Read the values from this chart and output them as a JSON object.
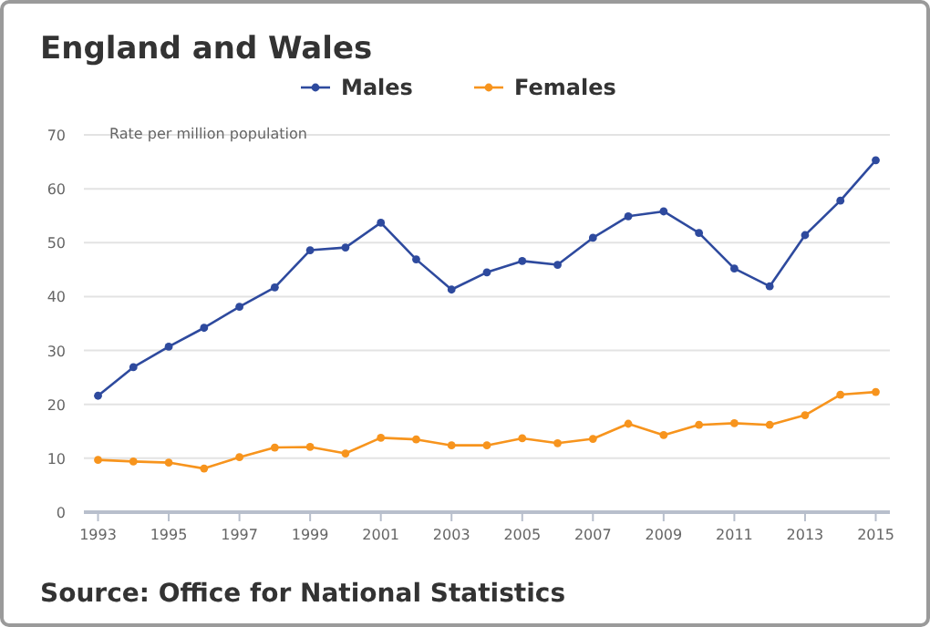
{
  "chart_data": {
    "type": "line",
    "title": "England and Wales",
    "ylabel": "Rate per million population",
    "annotations": [
      "Source: Office for National Statistics"
    ],
    "x": [
      1993,
      1994,
      1995,
      1996,
      1997,
      1998,
      1999,
      2000,
      2001,
      2002,
      2003,
      2004,
      2005,
      2006,
      2007,
      2008,
      2009,
      2010,
      2011,
      2012,
      2013,
      2014,
      2015
    ],
    "series": [
      {
        "name": "Males",
        "color": "#2e4a9e",
        "values": [
          21.6,
          26.9,
          30.7,
          34.2,
          38.1,
          41.7,
          48.6,
          49.1,
          53.7,
          46.9,
          41.3,
          44.5,
          46.6,
          45.9,
          50.9,
          54.9,
          55.8,
          51.8,
          45.2,
          41.9,
          51.4,
          57.8,
          65.3
        ]
      },
      {
        "name": "Females",
        "color": "#f7941d",
        "values": [
          9.7,
          9.4,
          9.2,
          8.1,
          10.2,
          12.0,
          12.1,
          10.9,
          13.8,
          13.5,
          12.4,
          12.4,
          13.7,
          12.8,
          13.6,
          16.4,
          14.3,
          16.2,
          16.5,
          16.2,
          18.0,
          21.8,
          22.3
        ]
      }
    ],
    "xlim": [
      1992.6,
      2015.4
    ],
    "xticks": [
      1993,
      1995,
      1997,
      1999,
      2001,
      2003,
      2005,
      2007,
      2009,
      2011,
      2013,
      2015
    ],
    "ylim": [
      0,
      70
    ],
    "yticks": [
      0,
      10,
      20,
      30,
      40,
      50,
      60,
      70
    ],
    "grid": "y",
    "legend": "top",
    "marker": "circle",
    "line_style": "solid"
  }
}
